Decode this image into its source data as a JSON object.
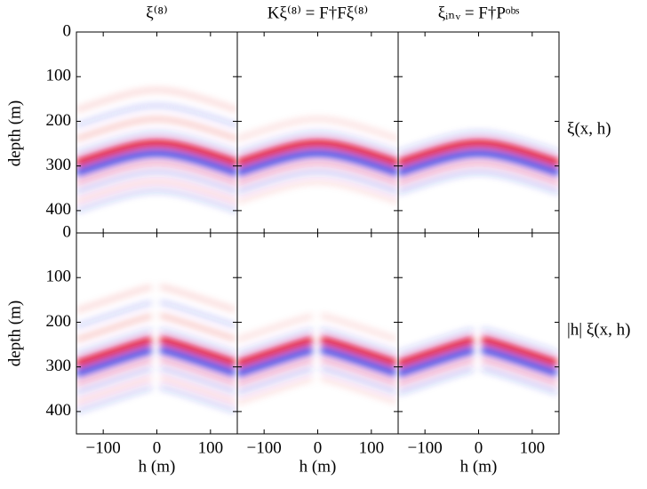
{
  "chart_data": {
    "type": "image-grid",
    "column_titles": [
      "ξ⁽⁸⁾",
      "Kξ⁽⁸⁾ = F†Fξ⁽⁸⁾",
      "ξᵢₙᵥ = F†Pᵒᵇˢ"
    ],
    "row_labels": [
      "ξ(x, h)",
      "|h| ξ(x, h)"
    ],
    "xlabel": "h (m)",
    "ylabel": "depth (m)",
    "xlim": [
      -150,
      150
    ],
    "xticks": [
      {
        "value": -100,
        "label": "−100"
      },
      0,
      100
    ],
    "ylim": [
      0,
      450
    ],
    "y_inverted": true,
    "yticks": [
      0,
      100,
      200,
      300,
      400
    ],
    "colors": {
      "positive": "#e00000",
      "negative": "#1a2ee0"
    }
  }
}
